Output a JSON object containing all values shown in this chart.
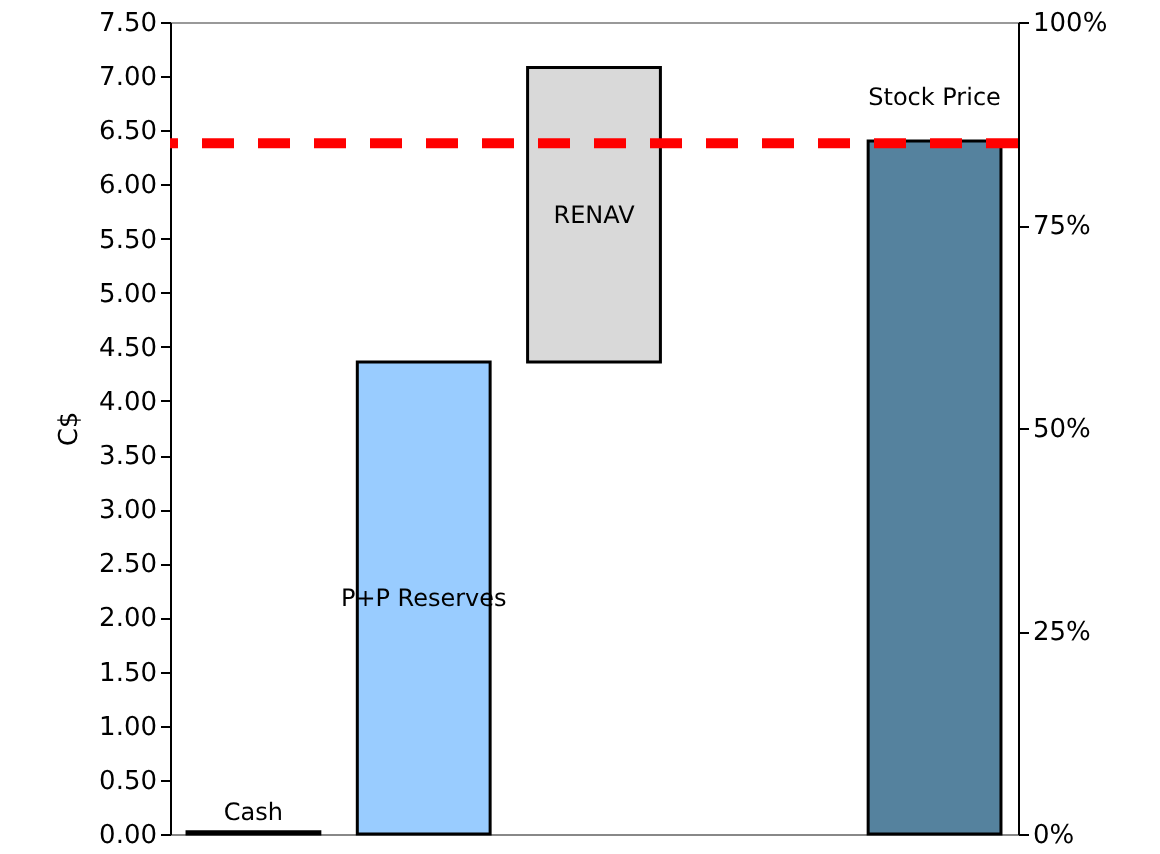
{
  "chart_data": {
    "type": "bar",
    "categories": [
      "Cash",
      "P+P Reserves",
      "RENAV",
      null,
      "Stock Price"
    ],
    "values": [
      0.02,
      4.36,
      2.72,
      null,
      6.4
    ],
    "base": [
      0,
      0,
      4.36,
      null,
      0
    ],
    "colors": [
      "#000000",
      "#99ccff",
      "#d9d9d9",
      null,
      "#55829e"
    ],
    "ylabel": "C$",
    "ylim": [
      0,
      7.5
    ],
    "yticks": [
      {
        "value": 0,
        "label": "0.00"
      },
      {
        "value": 0.5,
        "label": "0.50"
      },
      {
        "value": 1,
        "label": "1.00"
      },
      {
        "value": 1.5,
        "label": "1.50"
      },
      {
        "value": 2,
        "label": "2.00"
      },
      {
        "value": 2.5,
        "label": "2.50"
      },
      {
        "value": 3,
        "label": "3.00"
      },
      {
        "value": 3.5,
        "label": "3.50"
      },
      {
        "value": 4,
        "label": "4.00"
      },
      {
        "value": 4.5,
        "label": "4.50"
      },
      {
        "value": 5,
        "label": "5.00"
      },
      {
        "value": 5.5,
        "label": "5.50"
      },
      {
        "value": 6,
        "label": "6.00"
      },
      {
        "value": 6.5,
        "label": "6.50"
      },
      {
        "value": 7,
        "label": "7.00"
      },
      {
        "value": 7.5,
        "label": "7.50"
      }
    ],
    "y2lim": [
      0,
      100
    ],
    "y2ticks": [
      {
        "value": 0,
        "label": "0%"
      },
      {
        "value": 25,
        "label": "25%"
      },
      {
        "value": 50,
        "label": "50%"
      },
      {
        "value": 75,
        "label": "75%"
      },
      {
        "value": 100,
        "label": "100%"
      }
    ],
    "ref_lines": [
      {
        "axis": "y",
        "value": 6.38,
        "color": "#ff0000",
        "line_style": "dashed"
      }
    ],
    "tick_labels": "y",
    "grid": false
  }
}
